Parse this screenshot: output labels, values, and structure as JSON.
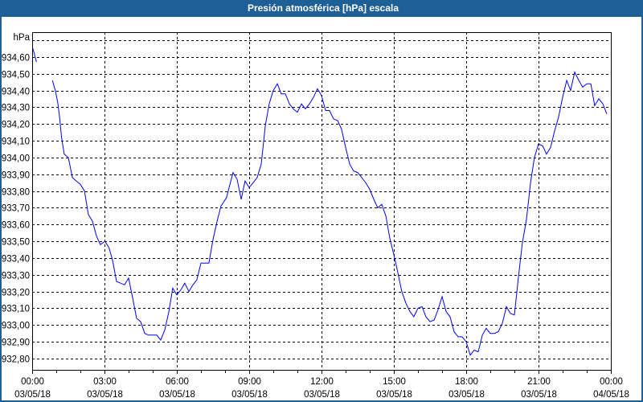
{
  "window": {
    "title": "Presión atmosférica [hPa] escala"
  },
  "chart_data": {
    "type": "line",
    "title": "Presión atmosférica [hPa] escala",
    "ylabel": "hPa",
    "xlabel": "",
    "ylim": [
      932.75,
      934.75
    ],
    "xlim_hours": [
      0,
      24
    ],
    "grid": true,
    "line_color": "#0000ff",
    "y_ticks": [
      {
        "value": 934.7,
        "label": ""
      },
      {
        "value": 934.6,
        "label": "934,60"
      },
      {
        "value": 934.5,
        "label": "934,50"
      },
      {
        "value": 934.4,
        "label": "934,40"
      },
      {
        "value": 934.3,
        "label": "934,30"
      },
      {
        "value": 934.2,
        "label": "934,20"
      },
      {
        "value": 934.1,
        "label": "934,10"
      },
      {
        "value": 934.0,
        "label": "934,00"
      },
      {
        "value": 933.9,
        "label": "933,90"
      },
      {
        "value": 933.8,
        "label": "933,80"
      },
      {
        "value": 933.7,
        "label": "933,70"
      },
      {
        "value": 933.6,
        "label": "933,60"
      },
      {
        "value": 933.5,
        "label": "933,50"
      },
      {
        "value": 933.4,
        "label": "933,40"
      },
      {
        "value": 933.3,
        "label": "933,30"
      },
      {
        "value": 933.2,
        "label": "933,20"
      },
      {
        "value": 933.1,
        "label": "933,10"
      },
      {
        "value": 933.0,
        "label": "933,00"
      },
      {
        "value": 932.9,
        "label": "932,90"
      },
      {
        "value": 932.8,
        "label": "932,80"
      }
    ],
    "x_ticks": [
      {
        "hour": 0,
        "time": "00:00",
        "date": "03/05/18"
      },
      {
        "hour": 3,
        "time": "03:00",
        "date": "03/05/18"
      },
      {
        "hour": 6,
        "time": "06:00",
        "date": "03/05/18"
      },
      {
        "hour": 9,
        "time": "09:00",
        "date": "03/05/18"
      },
      {
        "hour": 12,
        "time": "12:00",
        "date": "03/05/18"
      },
      {
        "hour": 15,
        "time": "15:00",
        "date": "03/05/18"
      },
      {
        "hour": 18,
        "time": "18:00",
        "date": "03/05/18"
      },
      {
        "hour": 21,
        "time": "21:00",
        "date": "03/05/18"
      },
      {
        "hour": 24,
        "time": "00:00",
        "date": "04/05/18"
      }
    ],
    "segments": [
      [
        [
          0.03,
          934.65
        ],
        [
          0.18,
          934.57
        ]
      ],
      [
        [
          0.84,
          934.46
        ],
        [
          0.96,
          934.4
        ],
        [
          1.06,
          934.33
        ],
        [
          1.13,
          934.25
        ],
        [
          1.22,
          934.12
        ],
        [
          1.33,
          934.02
        ],
        [
          1.5,
          934.0
        ],
        [
          1.67,
          933.88
        ],
        [
          1.83,
          933.86
        ],
        [
          2.0,
          933.84
        ],
        [
          2.17,
          933.8
        ],
        [
          2.33,
          933.66
        ],
        [
          2.5,
          933.62
        ],
        [
          2.67,
          933.53
        ],
        [
          2.83,
          933.48
        ],
        [
          3.02,
          933.5
        ],
        [
          3.19,
          933.46
        ],
        [
          3.33,
          933.39
        ],
        [
          3.5,
          933.26
        ],
        [
          3.67,
          933.25
        ],
        [
          3.83,
          933.24
        ],
        [
          4.0,
          933.28
        ],
        [
          4.17,
          933.16
        ],
        [
          4.33,
          933.04
        ],
        [
          4.5,
          933.02
        ],
        [
          4.67,
          932.95
        ],
        [
          4.83,
          932.94
        ],
        [
          5.17,
          932.94
        ],
        [
          5.33,
          932.91
        ],
        [
          5.5,
          932.97
        ],
        [
          5.67,
          933.08
        ],
        [
          5.83,
          933.22
        ],
        [
          6.0,
          933.18
        ],
        [
          6.17,
          933.21
        ],
        [
          6.33,
          933.25
        ],
        [
          6.5,
          933.2
        ],
        [
          6.67,
          933.24
        ],
        [
          6.83,
          933.27
        ],
        [
          7.0,
          933.37
        ],
        [
          7.33,
          933.37
        ],
        [
          7.5,
          933.51
        ],
        [
          7.67,
          933.62
        ],
        [
          7.83,
          933.71
        ],
        [
          8.06,
          933.76
        ],
        [
          8.33,
          933.91
        ],
        [
          8.5,
          933.87
        ],
        [
          8.67,
          933.75
        ],
        [
          8.83,
          933.86
        ],
        [
          9.0,
          933.82
        ],
        [
          9.17,
          933.85
        ],
        [
          9.33,
          933.88
        ],
        [
          9.5,
          933.96
        ],
        [
          9.67,
          934.19
        ],
        [
          9.83,
          934.32
        ],
        [
          10.0,
          934.4
        ],
        [
          10.17,
          934.44
        ],
        [
          10.33,
          934.38
        ],
        [
          10.5,
          934.38
        ],
        [
          10.67,
          934.32
        ],
        [
          10.83,
          934.29
        ],
        [
          11.0,
          934.27
        ],
        [
          11.17,
          934.32
        ],
        [
          11.33,
          934.29
        ],
        [
          11.5,
          934.32
        ],
        [
          11.67,
          934.36
        ],
        [
          11.83,
          934.41
        ],
        [
          12.0,
          934.37
        ],
        [
          12.17,
          934.28
        ],
        [
          12.33,
          934.28
        ],
        [
          12.5,
          934.23
        ],
        [
          12.67,
          934.22
        ],
        [
          12.83,
          934.17
        ],
        [
          13.0,
          934.06
        ],
        [
          13.17,
          933.96
        ],
        [
          13.33,
          933.92
        ],
        [
          13.5,
          933.91
        ],
        [
          13.67,
          933.88
        ],
        [
          13.83,
          933.85
        ],
        [
          14.0,
          933.81
        ],
        [
          14.17,
          933.75
        ],
        [
          14.33,
          933.7
        ],
        [
          14.5,
          933.72
        ],
        [
          14.67,
          933.65
        ],
        [
          14.83,
          933.52
        ],
        [
          15.0,
          933.42
        ],
        [
          15.17,
          933.31
        ],
        [
          15.33,
          933.2
        ],
        [
          15.5,
          933.13
        ],
        [
          15.67,
          933.08
        ],
        [
          15.83,
          933.05
        ],
        [
          16.0,
          933.1
        ],
        [
          16.17,
          933.11
        ],
        [
          16.33,
          933.05
        ],
        [
          16.5,
          933.02
        ],
        [
          16.67,
          933.03
        ],
        [
          16.83,
          933.09
        ],
        [
          17.0,
          933.17
        ],
        [
          17.17,
          933.08
        ],
        [
          17.33,
          933.05
        ],
        [
          17.5,
          932.96
        ],
        [
          17.67,
          932.93
        ],
        [
          17.83,
          932.93
        ],
        [
          18.0,
          932.9
        ],
        [
          18.17,
          932.82
        ],
        [
          18.33,
          932.85
        ],
        [
          18.5,
          932.84
        ],
        [
          18.67,
          932.94
        ],
        [
          18.83,
          932.98
        ],
        [
          19.0,
          932.95
        ],
        [
          19.17,
          932.95
        ],
        [
          19.33,
          932.96
        ],
        [
          19.5,
          933.01
        ],
        [
          19.67,
          933.11
        ],
        [
          19.83,
          933.07
        ],
        [
          20.0,
          933.06
        ],
        [
          20.17,
          933.29
        ],
        [
          20.33,
          933.49
        ],
        [
          20.5,
          933.63
        ],
        [
          20.67,
          933.85
        ],
        [
          20.83,
          934.0
        ],
        [
          21.0,
          934.08
        ],
        [
          21.17,
          934.07
        ],
        [
          21.33,
          934.02
        ],
        [
          21.5,
          934.06
        ],
        [
          21.67,
          934.16
        ],
        [
          21.83,
          934.24
        ],
        [
          22.0,
          934.36
        ],
        [
          22.17,
          934.46
        ],
        [
          22.33,
          934.4
        ],
        [
          22.5,
          934.51
        ],
        [
          22.67,
          934.46
        ],
        [
          22.83,
          934.42
        ],
        [
          23.0,
          934.44
        ],
        [
          23.17,
          934.44
        ],
        [
          23.33,
          934.31
        ],
        [
          23.5,
          934.35
        ],
        [
          23.67,
          934.32
        ],
        [
          23.83,
          934.26
        ]
      ]
    ]
  }
}
